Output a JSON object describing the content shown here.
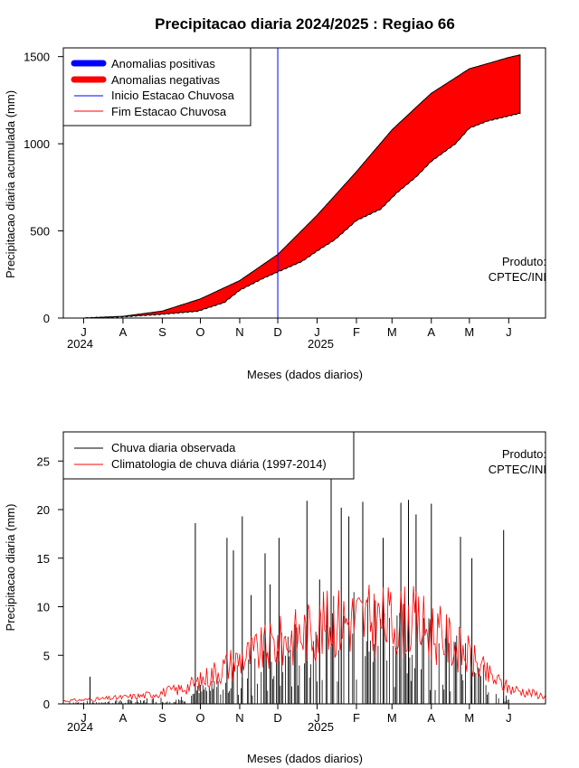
{
  "title": "Precipitacao diaria 2024/2025 : Regiao 66",
  "colors": {
    "positive_anomaly": "#0000ff",
    "negative_anomaly": "#ff0000",
    "season_start": "#0000ff",
    "season_end": "#ff0000",
    "observed": "#000000",
    "climatology": "#ff0000"
  },
  "chart_data": [
    {
      "type": "area",
      "ylabel": "Precipitacao diaria acumulada (mm)",
      "xlabel": "Meses (dados diarios)",
      "month_ticks": [
        "J",
        "A",
        "S",
        "O",
        "N",
        "D",
        "J",
        "F",
        "M",
        "A",
        "M",
        "J"
      ],
      "year_labels": [
        "2024",
        "2025"
      ],
      "y_ticks": [
        "0",
        "500",
        "1000",
        "1500"
      ],
      "ylim": [
        0,
        1550
      ],
      "xlim": [
        "2024-06-15",
        "2025-06-30"
      ],
      "credit": [
        "Produto:",
        "CPTEC/INI"
      ],
      "legend": {
        "placement": "top-left",
        "items": [
          {
            "label": "Anomalias positivas",
            "color": "#0000ff"
          },
          {
            "label": "Anomalias negativas",
            "color": "#ff0000"
          },
          {
            "label": "Inicio Estacao Chuvosa",
            "color": "#0000ff"
          },
          {
            "label": "Fim Estacao Chuvosa",
            "color": "#ff0000"
          }
        ]
      },
      "season_start": "2024-12-01",
      "climatology_cumulative": {
        "dates": [
          "2024-07-01",
          "2024-08-01",
          "2024-09-01",
          "2024-10-01",
          "2024-11-01",
          "2024-12-01",
          "2025-01-01",
          "2025-02-01",
          "2025-03-01",
          "2025-04-01",
          "2025-05-01",
          "2025-06-01",
          "2025-06-10"
        ],
        "values": [
          0,
          10,
          40,
          110,
          215,
          365,
          590,
          840,
          1080,
          1290,
          1430,
          1495,
          1510
        ]
      },
      "observed_cumulative": {
        "dates": [
          "2024-07-01",
          "2024-08-01",
          "2024-09-01",
          "2024-09-29",
          "2024-10-20",
          "2024-11-01",
          "2024-11-20",
          "2024-12-01",
          "2024-12-20",
          "2025-01-01",
          "2025-01-15",
          "2025-02-01",
          "2025-02-20",
          "2025-03-05",
          "2025-03-20",
          "2025-04-01",
          "2025-04-20",
          "2025-05-01",
          "2025-05-15",
          "2025-06-01",
          "2025-06-10"
        ],
        "values": [
          0,
          8,
          22,
          40,
          90,
          160,
          230,
          265,
          325,
          385,
          450,
          560,
          625,
          720,
          810,
          900,
          1000,
          1090,
          1130,
          1160,
          1175
        ]
      }
    },
    {
      "type": "line",
      "ylabel": "Precipitacao diaria (mm)",
      "xlabel": "Meses (dados diarios)",
      "month_ticks": [
        "J",
        "A",
        "S",
        "O",
        "N",
        "D",
        "J",
        "F",
        "M",
        "A",
        "M",
        "J"
      ],
      "year_labels": [
        "2024",
        "2025"
      ],
      "y_ticks": [
        "0",
        "5",
        "10",
        "15",
        "20",
        "25"
      ],
      "ylim": [
        0,
        28
      ],
      "xlim": [
        "2024-06-15",
        "2025-06-30"
      ],
      "credit": [
        "Produto:",
        "CPTEC/INI"
      ],
      "legend": {
        "placement": "top-left",
        "items": [
          {
            "label": "Chuva diaria observada",
            "color": "#000000"
          },
          {
            "label": "Climatologia de chuva diária (1997-2014)",
            "color": "#ff0000"
          }
        ]
      },
      "observed_peaks": {
        "dates": [
          "2024-07-06",
          "2024-09-27",
          "2024-10-22",
          "2024-10-27",
          "2024-11-03",
          "2024-11-10",
          "2024-11-21",
          "2024-11-25",
          "2024-12-02",
          "2024-12-24",
          "2025-01-03",
          "2025-01-12",
          "2025-01-20",
          "2025-01-26",
          "2025-02-06",
          "2025-02-22",
          "2025-03-08",
          "2025-03-14",
          "2025-03-20",
          "2025-04-01",
          "2025-04-24",
          "2025-05-03",
          "2025-05-28"
        ],
        "values": [
          2.8,
          18.6,
          17.1,
          15.8,
          19.3,
          11.2,
          15.5,
          12.3,
          17.1,
          20.9,
          12.8,
          23.5,
          20.2,
          19.3,
          20.8,
          17.1,
          20.7,
          21.0,
          19.5,
          20.6,
          17.2,
          15.0,
          17.9
        ]
      },
      "observed_profile": {
        "dates": [
          "2024-06-20",
          "2024-08-01",
          "2024-09-15",
          "2024-10-15",
          "2024-11-15",
          "2024-12-15",
          "2025-01-15",
          "2025-02-15",
          "2025-03-15",
          "2025-04-15",
          "2025-05-10",
          "2025-06-01"
        ],
        "values": [
          0.1,
          0.2,
          0.4,
          1.5,
          2.5,
          4.0,
          5.5,
          5.5,
          5.0,
          4.0,
          2.0,
          0.3
        ]
      },
      "climatology_daily": {
        "dates": [
          "2024-06-15",
          "2024-07-15",
          "2024-08-15",
          "2024-09-15",
          "2024-10-01",
          "2024-10-15",
          "2024-11-01",
          "2024-11-15",
          "2024-12-01",
          "2024-12-15",
          "2025-01-01",
          "2025-01-15",
          "2025-02-01",
          "2025-02-15",
          "2025-03-01",
          "2025-03-15",
          "2025-04-01",
          "2025-04-15",
          "2025-05-01",
          "2025-05-15",
          "2025-06-01",
          "2025-06-30"
        ],
        "values": [
          0.3,
          0.5,
          0.8,
          1.5,
          2.3,
          3.5,
          4.6,
          5.3,
          6.2,
          7.0,
          7.8,
          8.5,
          8.8,
          8.5,
          8.5,
          8.6,
          7.5,
          6.5,
          4.8,
          3.0,
          1.6,
          0.8
        ]
      }
    }
  ]
}
